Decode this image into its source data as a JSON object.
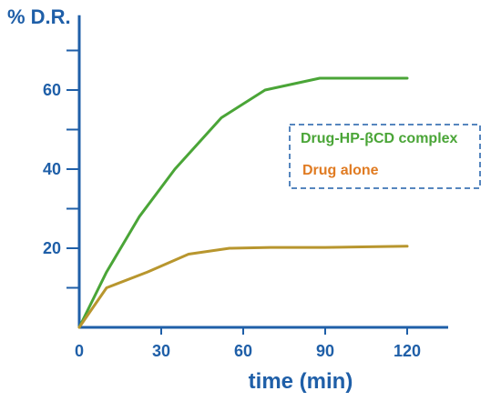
{
  "chart_data": {
    "type": "line",
    "xlabel": "time (min)",
    "ylabel": "% D.R.",
    "xlim": [
      0,
      135
    ],
    "ylim": [
      0,
      78
    ],
    "x_ticks": [
      0,
      30,
      60,
      90,
      120
    ],
    "y_ticks": [
      20,
      40,
      60
    ],
    "y_minor_ticks": [
      10,
      30,
      50,
      70
    ],
    "grid": false,
    "legend_position": "right",
    "legend_style": "dashed box",
    "colors": {
      "axis": "#1f5fa8",
      "series1": "#4aa537",
      "series2": "#e07b22",
      "series2_line": "#b8962e"
    },
    "series": [
      {
        "name": "Drug-HP-βCD complex",
        "x": [
          0,
          10,
          22,
          35,
          52,
          68,
          88,
          120
        ],
        "y": [
          0,
          14,
          28,
          40,
          53,
          60,
          63,
          63
        ]
      },
      {
        "name": "Drug alone",
        "x": [
          0,
          10,
          25,
          40,
          55,
          70,
          90,
          120
        ],
        "y": [
          0,
          10,
          14,
          18.5,
          20,
          20.2,
          20.2,
          20.5
        ]
      }
    ]
  }
}
